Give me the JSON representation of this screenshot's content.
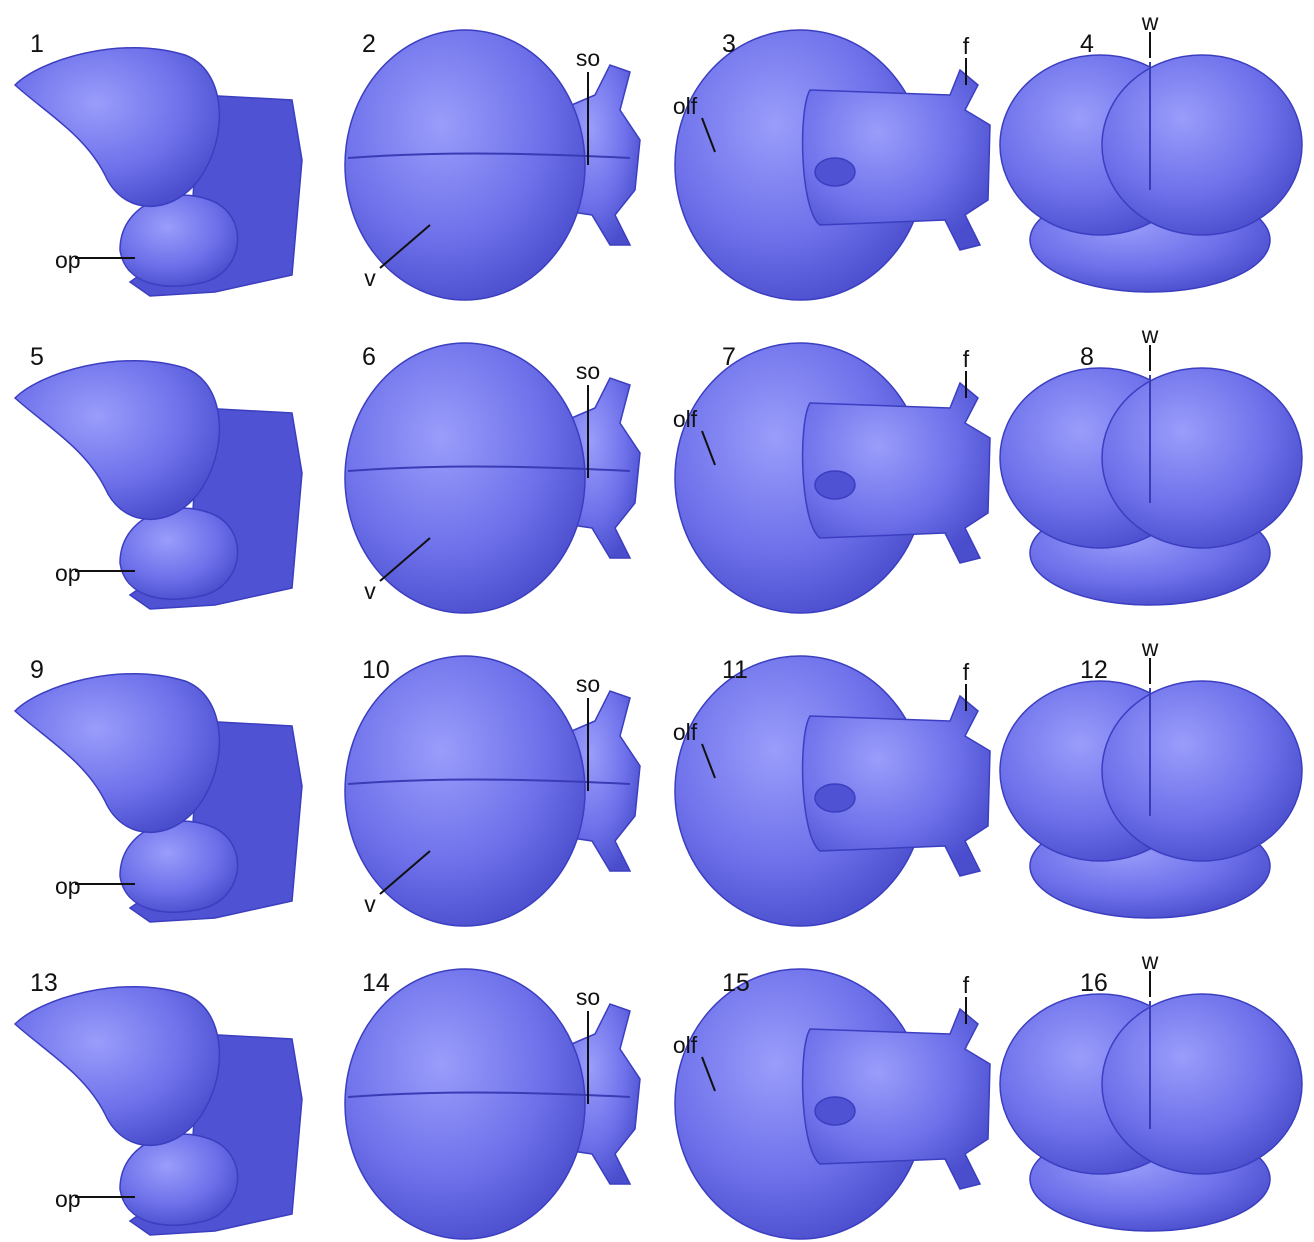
{
  "panels": [
    {
      "number": "1",
      "labels": [
        "op"
      ]
    },
    {
      "number": "2",
      "labels": [
        "so",
        "v"
      ]
    },
    {
      "number": "3",
      "labels": [
        "f",
        "olf"
      ]
    },
    {
      "number": "4",
      "labels": [
        "w"
      ]
    },
    {
      "number": "5",
      "labels": [
        "op"
      ]
    },
    {
      "number": "6",
      "labels": [
        "so",
        "v"
      ]
    },
    {
      "number": "7",
      "labels": [
        "f",
        "olf"
      ]
    },
    {
      "number": "8",
      "labels": [
        "w"
      ]
    },
    {
      "number": "9",
      "labels": [
        "op"
      ]
    },
    {
      "number": "10",
      "labels": [
        "so",
        "v"
      ]
    },
    {
      "number": "11",
      "labels": [
        "f",
        "olf"
      ]
    },
    {
      "number": "12",
      "labels": [
        "w"
      ]
    },
    {
      "number": "13",
      "labels": [
        "op"
      ]
    },
    {
      "number": "14",
      "labels": [
        "so"
      ]
    },
    {
      "number": "15",
      "labels": [
        "f",
        "olf"
      ]
    },
    {
      "number": "16",
      "labels": [
        "w"
      ]
    }
  ]
}
